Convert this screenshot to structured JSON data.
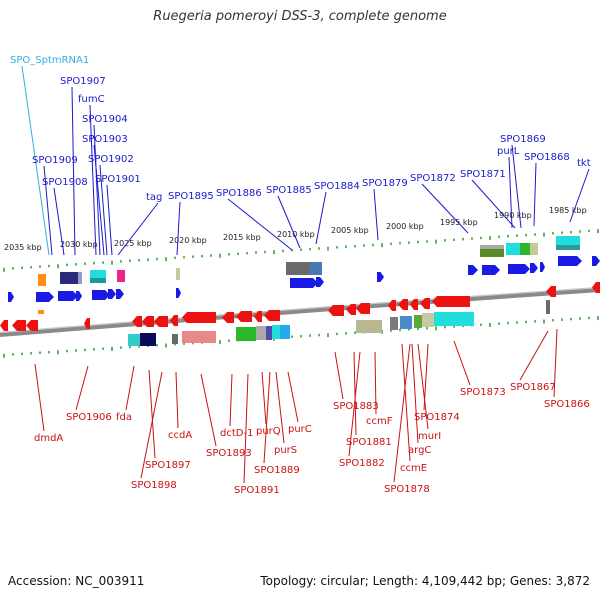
{
  "title": "Ruegeria pomeroyi DSS-3, complete genome",
  "footer": {
    "accession": "Accession: NC_003911",
    "summary": "Topology: circular; Length: 4,109,442 bp; Genes: 3,872"
  },
  "colors": {
    "forward_label": "#1a1acc",
    "reverse_label": "#cc1111",
    "rna_label": "#33b0dd",
    "forward_gene": "#1a1ae6",
    "reverse_gene": "#ee1111",
    "backbone": "#8a8a8a",
    "tick": "#2a9a2a"
  },
  "scale_labels": [
    "2035 kbp",
    "2030 kbp",
    "2025 kbp",
    "2020 kbp",
    "2015 kbp",
    "2010 kbp",
    "2005 kbp",
    "2000 kbp",
    "1995 kbp",
    "1990 kbp",
    "1985 kbp"
  ],
  "forward_genes": [
    {
      "label": "SPO_SptmRNA1",
      "type": "rna"
    },
    {
      "label": "SPO1907",
      "type": "gene"
    },
    {
      "label": "fumC",
      "type": "gene"
    },
    {
      "label": "SPO1904",
      "type": "gene"
    },
    {
      "label": "SPO1903",
      "type": "gene"
    },
    {
      "label": "SPO1902",
      "type": "gene"
    },
    {
      "label": "SPO1909",
      "type": "gene"
    },
    {
      "label": "SPO1901",
      "type": "gene"
    },
    {
      "label": "SPO1908",
      "type": "gene"
    },
    {
      "label": "tag",
      "type": "gene"
    },
    {
      "label": "SPO1895",
      "type": "gene"
    },
    {
      "label": "SPO1886",
      "type": "gene"
    },
    {
      "label": "SPO1885",
      "type": "gene"
    },
    {
      "label": "SPO1884",
      "type": "gene"
    },
    {
      "label": "SPO1879",
      "type": "gene"
    },
    {
      "label": "SPO1872",
      "type": "gene"
    },
    {
      "label": "SPO1871",
      "type": "gene"
    },
    {
      "label": "SPO1869",
      "type": "gene"
    },
    {
      "label": "purL",
      "type": "gene"
    },
    {
      "label": "SPO1868",
      "type": "gene"
    },
    {
      "label": "tkt",
      "type": "gene"
    }
  ],
  "reverse_genes": [
    {
      "label": "dmdA"
    },
    {
      "label": "SPO1906"
    },
    {
      "label": "fda"
    },
    {
      "label": "SPO1897"
    },
    {
      "label": "SPO1898"
    },
    {
      "label": "ccdA"
    },
    {
      "label": "SPO1893"
    },
    {
      "label": "dctD-1"
    },
    {
      "label": "SPO1891"
    },
    {
      "label": "purQ"
    },
    {
      "label": "SPO1889"
    },
    {
      "label": "purS"
    },
    {
      "label": "purC"
    },
    {
      "label": "SPO1883"
    },
    {
      "label": "SPO1881"
    },
    {
      "label": "SPO1882"
    },
    {
      "label": "ccmF"
    },
    {
      "label": "ccmE"
    },
    {
      "label": "SPO1878"
    },
    {
      "label": "argC"
    },
    {
      "label": "murI"
    },
    {
      "label": "SPO1874"
    },
    {
      "label": "SPO1873"
    },
    {
      "label": "SPO1867"
    },
    {
      "label": "SPO1866"
    }
  ]
}
